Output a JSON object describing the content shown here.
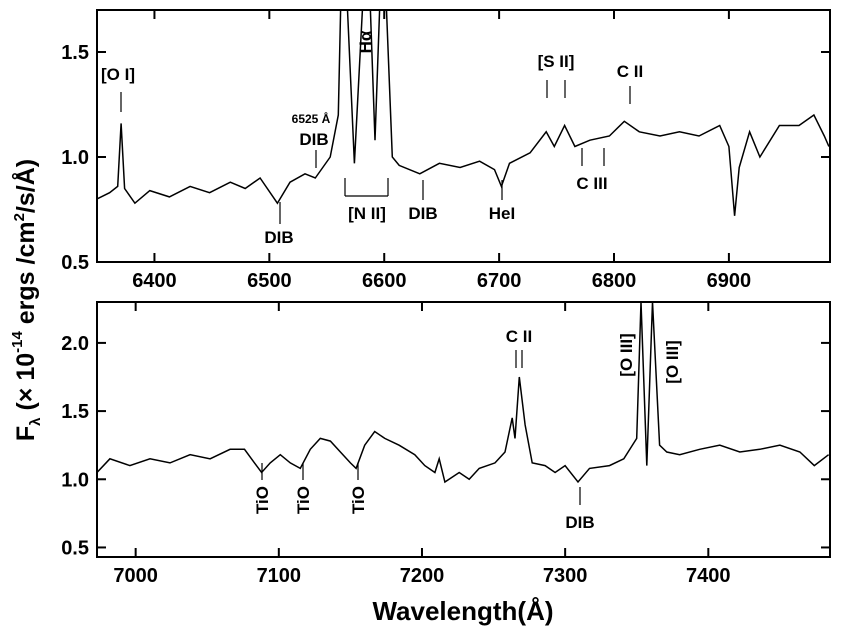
{
  "figure": {
    "x_label": "Wavelength(Å)",
    "y_label": [
      "F",
      "λ",
      " (× 10",
      "-14",
      " ergs /cm",
      "2",
      "/s/Å)"
    ]
  },
  "chart_data": [
    {
      "type": "line",
      "xlim": [
        6350,
        6988
      ],
      "ylim": [
        0.5,
        1.7
      ],
      "xticks": [
        6400,
        6500,
        6600,
        6700,
        6800,
        6900
      ],
      "yticks": [
        0.5,
        {
          "value": 1,
          "label": "1.0"
        },
        1.5
      ],
      "x": [
        6350,
        6361,
        6368,
        6371,
        6374,
        6383,
        6396,
        6413,
        6431,
        6448,
        6466,
        6479,
        6492,
        6507,
        6518,
        6531,
        6540,
        6553,
        6560,
        6562,
        6568,
        6574,
        6581,
        6588,
        6592,
        6596,
        6602,
        6607,
        6613,
        6631,
        6648,
        6666,
        6683,
        6696,
        6702,
        6709,
        6727,
        6741,
        6748,
        6757,
        6766,
        6779,
        6796,
        6809,
        6822,
        6840,
        6857,
        6874,
        6892,
        6900,
        6905,
        6909,
        6918,
        6927,
        6944,
        6961,
        6974,
        6983,
        6987
      ],
      "series": [
        {
          "color": "#000000",
          "values": [
            0.8,
            0.83,
            0.86,
            1.16,
            0.85,
            0.78,
            0.84,
            0.81,
            0.86,
            0.83,
            0.88,
            0.85,
            0.9,
            0.78,
            0.88,
            0.92,
            0.9,
            1.0,
            1.2,
            1.7,
            1.7,
            0.97,
            1.7,
            1.7,
            1.08,
            1.7,
            1.7,
            1.0,
            0.96,
            0.92,
            0.97,
            0.95,
            0.98,
            0.94,
            0.86,
            0.97,
            1.02,
            1.12,
            1.05,
            1.15,
            1.05,
            1.08,
            1.1,
            1.17,
            1.12,
            1.1,
            1.12,
            1.1,
            1.15,
            1.05,
            0.72,
            0.95,
            1.12,
            1.0,
            1.15,
            1.15,
            1.2,
            1.1,
            1.05
          ]
        }
      ],
      "annotations": [
        "[O I]",
        "6525 Å",
        "DIB",
        "Hα",
        "[N II]",
        "DIB",
        "DIB",
        "HeI",
        "[S II]",
        "C II",
        "C III"
      ]
    },
    {
      "type": "line",
      "xlim": [
        6973,
        7485
      ],
      "ylim": [
        0.43,
        2.3
      ],
      "xticks": [
        7000,
        7100,
        7200,
        7300,
        7400
      ],
      "yticks": [
        0.5,
        {
          "value": 1,
          "label": "1.0"
        },
        1.5,
        {
          "value": 2,
          "label": "2.0"
        }
      ],
      "x": [
        6973,
        6982,
        6996,
        7010,
        7024,
        7038,
        7052,
        7066,
        7076,
        7083,
        7088,
        7094,
        7101,
        7108,
        7115,
        7122,
        7129,
        7136,
        7143,
        7150,
        7154,
        7160,
        7167,
        7174,
        7184,
        7195,
        7202,
        7209,
        7212,
        7216,
        7226,
        7233,
        7240,
        7251,
        7258,
        7263,
        7265,
        7268,
        7272,
        7277,
        7286,
        7293,
        7300,
        7309,
        7317,
        7331,
        7341,
        7350,
        7353,
        7357,
        7361,
        7366,
        7371,
        7380,
        7394,
        7408,
        7422,
        7436,
        7450,
        7464,
        7474,
        7484
      ],
      "series": [
        {
          "color": "#000000",
          "values": [
            1.05,
            1.15,
            1.1,
            1.15,
            1.12,
            1.18,
            1.15,
            1.22,
            1.22,
            1.12,
            1.05,
            1.12,
            1.18,
            1.12,
            1.08,
            1.22,
            1.3,
            1.28,
            1.2,
            1.12,
            1.08,
            1.25,
            1.35,
            1.3,
            1.25,
            1.18,
            1.1,
            1.05,
            1.15,
            0.98,
            1.05,
            1.0,
            1.08,
            1.12,
            1.2,
            1.45,
            1.3,
            1.75,
            1.4,
            1.12,
            1.1,
            1.05,
            1.1,
            0.98,
            1.08,
            1.1,
            1.15,
            1.3,
            2.3,
            1.1,
            2.3,
            1.25,
            1.2,
            1.18,
            1.22,
            1.25,
            1.2,
            1.22,
            1.25,
            1.2,
            1.1,
            1.18
          ]
        }
      ],
      "annotations": [
        "TiO",
        "TiO",
        "TiO",
        "C II",
        "DIB",
        "[O III]",
        "[O III]"
      ]
    }
  ]
}
